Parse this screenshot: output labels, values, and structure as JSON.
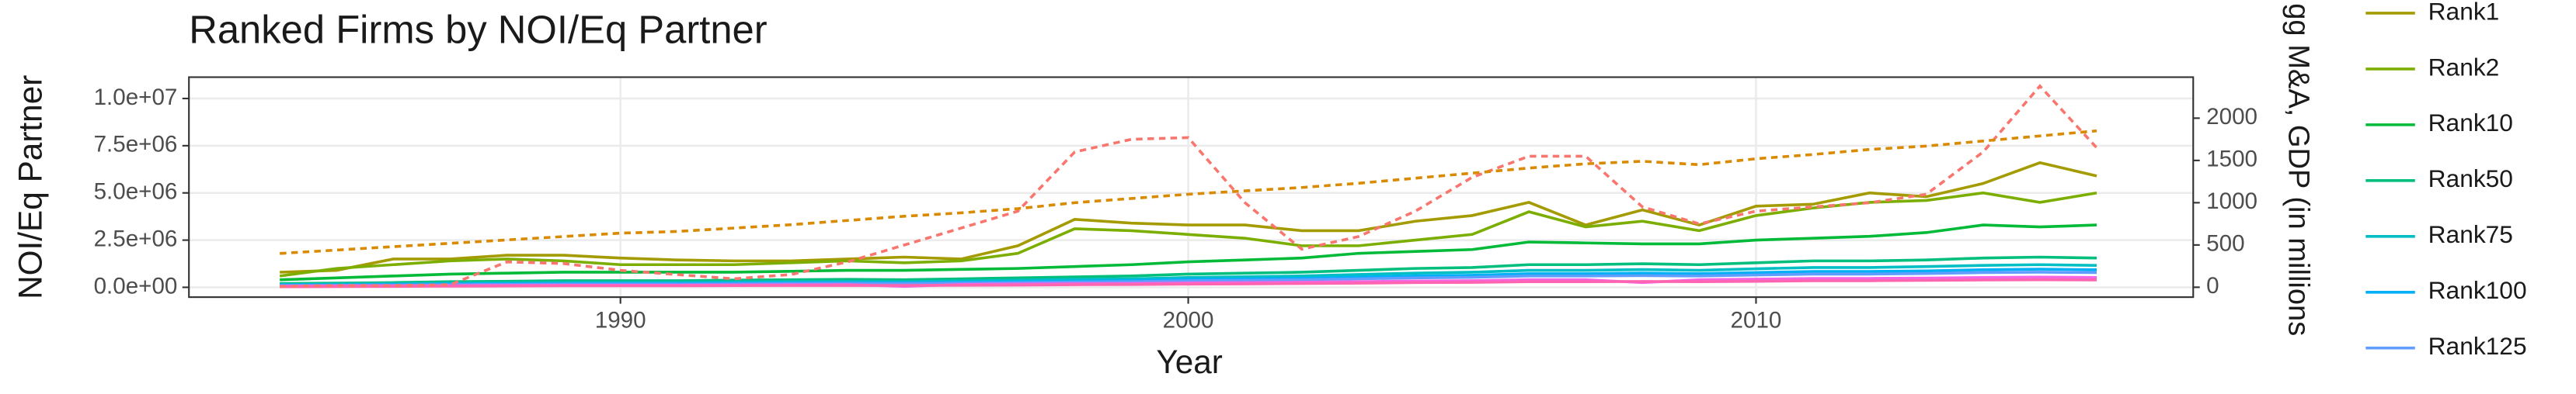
{
  "chart_data": {
    "type": "line",
    "title": "Ranked Firms by NOI/Eq Partner",
    "x_label": "Year",
    "y_label": "NOI/Eq Partner",
    "y2_label": "gg M&A, GDP (in millions",
    "x": [
      1984,
      1985,
      1986,
      1987,
      1988,
      1989,
      1990,
      1991,
      1992,
      1993,
      1994,
      1995,
      1996,
      1997,
      1998,
      1999,
      2000,
      2001,
      2002,
      2003,
      2004,
      2005,
      2006,
      2007,
      2008,
      2009,
      2010,
      2011,
      2012,
      2013,
      2014,
      2015,
      2016
    ],
    "xlim": [
      1982.4,
      2017.7
    ],
    "xticks": [
      1990,
      2000,
      2010
    ],
    "ylim": [
      -520000,
      11130000
    ],
    "yticks": [
      {
        "value": 0,
        "label": "0.0e+00"
      },
      {
        "value": 2500000,
        "label": "2.5e+06"
      },
      {
        "value": 5000000,
        "label": "5.0e+06"
      },
      {
        "value": 7500000,
        "label": "7.5e+06"
      },
      {
        "value": 10000000,
        "label": "1.0e+07"
      }
    ],
    "y2lim": [
      -117,
      2485
    ],
    "y2ticks": [
      0,
      500,
      1000,
      1500,
      2000
    ],
    "grid": true,
    "legend": "right",
    "series": [
      {
        "name": "Rank1",
        "color": "#a39b00",
        "values": [
          800000,
          900000,
          1500000,
          1500000,
          1700000,
          1700000,
          1550000,
          1450000,
          1400000,
          1400000,
          1500000,
          1600000,
          1500000,
          2200000,
          3600000,
          3400000,
          3300000,
          3300000,
          3000000,
          3000000,
          3500000,
          3800000,
          4500000,
          3300000,
          4100000,
          3300000,
          4300000,
          4400000,
          5000000,
          4800000,
          5500000,
          6600000,
          5900000
        ]
      },
      {
        "name": "Rank2",
        "color": "#7cae00",
        "values": [
          600000,
          1000000,
          1200000,
          1400000,
          1500000,
          1400000,
          1200000,
          1200000,
          1200000,
          1300000,
          1400000,
          1300000,
          1400000,
          1800000,
          3100000,
          3000000,
          2800000,
          2600000,
          2200000,
          2200000,
          2500000,
          2800000,
          4000000,
          3200000,
          3500000,
          3000000,
          3800000,
          4200000,
          4500000,
          4600000,
          5000000,
          4500000,
          5000000
        ]
      },
      {
        "name": "Rank10",
        "color": "#00ba38",
        "values": [
          400000,
          500000,
          600000,
          700000,
          750000,
          800000,
          800000,
          800000,
          800000,
          850000,
          900000,
          900000,
          950000,
          1000000,
          1100000,
          1200000,
          1350000,
          1450000,
          1550000,
          1800000,
          1900000,
          2000000,
          2400000,
          2350000,
          2300000,
          2300000,
          2500000,
          2600000,
          2700000,
          2900000,
          3300000,
          3200000,
          3300000
        ]
      },
      {
        "name": "Rank50",
        "color": "#00bf7d",
        "values": [
          200000,
          220000,
          250000,
          300000,
          320000,
          350000,
          350000,
          350000,
          380000,
          400000,
          420000,
          400000,
          450000,
          500000,
          550000,
          600000,
          700000,
          750000,
          800000,
          900000,
          1000000,
          1050000,
          1200000,
          1200000,
          1250000,
          1200000,
          1300000,
          1400000,
          1400000,
          1450000,
          1550000,
          1600000,
          1550000
        ]
      },
      {
        "name": "Rank75",
        "color": "#00bfc4",
        "values": [
          150000,
          170000,
          190000,
          220000,
          240000,
          260000,
          260000,
          260000,
          280000,
          300000,
          310000,
          300000,
          340000,
          380000,
          420000,
          450000,
          520000,
          560000,
          600000,
          680000,
          750000,
          800000,
          900000,
          900000,
          940000,
          900000,
          980000,
          1050000,
          1050000,
          1100000,
          1160000,
          1200000,
          1160000
        ]
      },
      {
        "name": "Rank100",
        "color": "#00b0f6",
        "values": [
          120000,
          130000,
          150000,
          170000,
          190000,
          200000,
          210000,
          210000,
          220000,
          240000,
          250000,
          240000,
          270000,
          300000,
          330000,
          360000,
          420000,
          450000,
          480000,
          540000,
          600000,
          640000,
          720000,
          720000,
          750000,
          720000,
          780000,
          840000,
          840000,
          870000,
          930000,
          960000,
          930000
        ]
      },
      {
        "name": "Rank125",
        "color": "#619cff",
        "values": [
          100000,
          110000,
          120000,
          140000,
          150000,
          170000,
          170000,
          170000,
          180000,
          200000,
          210000,
          200000,
          220000,
          250000,
          280000,
          300000,
          350000,
          370000,
          400000,
          450000,
          500000,
          530000,
          600000,
          600000,
          620000,
          600000,
          650000,
          700000,
          700000,
          730000,
          780000,
          800000,
          780000
        ]
      },
      {
        "color": "#f564e3",
        "values": [
          60000,
          70000,
          80000,
          90000,
          100000,
          110000,
          110000,
          110000,
          120000,
          130000,
          140000,
          50000,
          150000,
          170000,
          190000,
          200000,
          230000,
          250000,
          270000,
          300000,
          330000,
          350000,
          400000,
          400000,
          250000,
          400000,
          430000,
          470000,
          470000,
          490000,
          520000,
          540000,
          520000
        ]
      },
      {
        "color": "#ff64b0",
        "values": [
          30000,
          40000,
          50000,
          60000,
          70000,
          80000,
          80000,
          80000,
          90000,
          100000,
          100000,
          100000,
          110000,
          120000,
          140000,
          150000,
          170000,
          180000,
          200000,
          220000,
          250000,
          260000,
          300000,
          300000,
          310000,
          300000,
          320000,
          350000,
          350000,
          370000,
          390000,
          400000,
          390000
        ]
      },
      {
        "color": "#f8766d",
        "dashed": true,
        "axis": "y2",
        "values": [
          10,
          20,
          20,
          30,
          300,
          280,
          200,
          150,
          100,
          150,
          300,
          500,
          700,
          900,
          1600,
          1750,
          1770,
          1000,
          450,
          600,
          900,
          1300,
          1550,
          1550,
          950,
          750,
          900,
          950,
          1000,
          1100,
          1600,
          2380,
          1650
        ]
      },
      {
        "color": "#d98a00",
        "dashed": true,
        "axis": "y2",
        "values": [
          400,
          440,
          480,
          520,
          560,
          600,
          640,
          660,
          700,
          740,
          790,
          840,
          880,
          930,
          1000,
          1050,
          1100,
          1140,
          1180,
          1230,
          1290,
          1350,
          1410,
          1460,
          1490,
          1450,
          1520,
          1570,
          1630,
          1670,
          1730,
          1790,
          1850
        ]
      }
    ]
  }
}
